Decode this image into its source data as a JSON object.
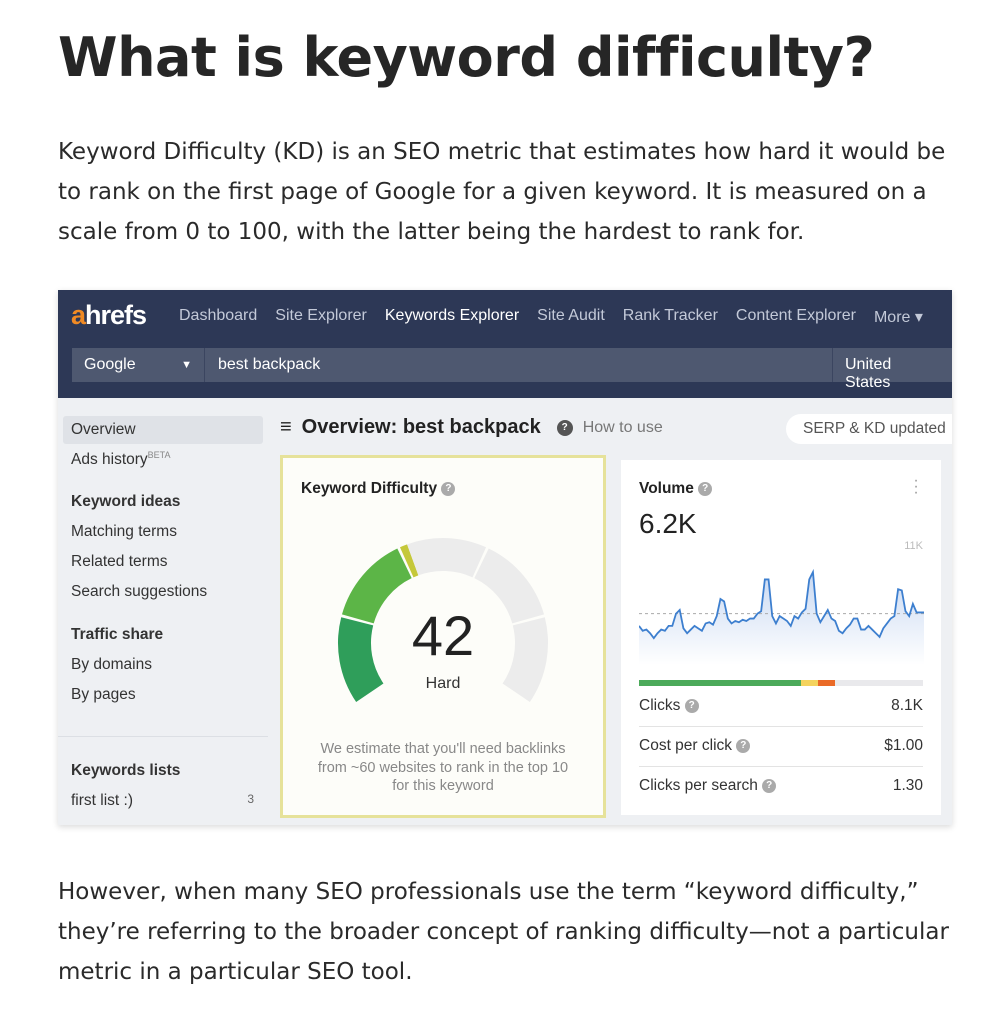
{
  "article": {
    "title": "What is keyword difficulty?",
    "intro": "Keyword Difficulty (KD) is an SEO metric that estimates how hard it would be to rank on the first page of Google for a given keyword. It is measured on a scale from 0 to 100, with the latter being the hardest to rank for.",
    "outro": "However, when many SEO professionals use the term “keyword difficulty,” they’re referring to the broader concept of ranking difficulty—not a particular metric in a particular SEO tool."
  },
  "app": {
    "logo": "ahrefs",
    "nav": [
      "Dashboard",
      "Site Explorer",
      "Keywords Explorer",
      "Site Audit",
      "Rank Tracker",
      "Content Explorer",
      "More ▾"
    ],
    "active_nav": "Keywords Explorer",
    "search": {
      "engine": "Google",
      "query": "best backpack",
      "country": "United States"
    },
    "sidebar": {
      "overview": "Overview",
      "ads_history": "Ads history",
      "beta": "BETA",
      "keyword_ideas": "Keyword ideas",
      "matching": "Matching terms",
      "related": "Related terms",
      "suggestions": "Search suggestions",
      "traffic_share": "Traffic share",
      "by_domains": "By domains",
      "by_pages": "By pages",
      "lists_title": "Keywords lists",
      "list_name": "first list :)",
      "list_count": "3"
    },
    "header": {
      "title": "Overview: best backpack",
      "how_to": "How to use",
      "updated": "SERP & KD updated"
    },
    "kd": {
      "title": "Keyword Difficulty",
      "value": 42,
      "label": "Hard",
      "note": "We estimate that you'll need backlinks from ~60 websites to rank in the top 10 for this keyword",
      "colors": [
        "#2f9e5a",
        "#5cb547",
        "#c5c83a",
        "#e9e9e9",
        "#e9e9e9"
      ]
    },
    "volume": {
      "title": "Volume",
      "value": "6.2K",
      "max_label": "11K",
      "sparkline_values": [
        5.2,
        4.8,
        4.9,
        4.6,
        4.2,
        4.6,
        4.9,
        4.8,
        5.2,
        5.2,
        6.2,
        6.5,
        5.0,
        4.6,
        4.9,
        5.2,
        5.0,
        4.8,
        5.4,
        5.5,
        5.3,
        6.0,
        7.4,
        7.2,
        5.8,
        5.4,
        5.6,
        5.5,
        5.7,
        5.6,
        5.8,
        5.8,
        6.2,
        6.4,
        9.0,
        9.0,
        6.0,
        5.4,
        6.0,
        5.8,
        5.6,
        5.2,
        6.0,
        5.8,
        6.3,
        6.6,
        9.0,
        9.6,
        6.2,
        5.5,
        6.0,
        6.5,
        5.8,
        5.6,
        4.8,
        4.6,
        5.0,
        5.3,
        5.8,
        5.8,
        4.9,
        4.9,
        5.2,
        4.9,
        4.6,
        4.3,
        5.0,
        5.4,
        5.8,
        6.0,
        8.2,
        8.1,
        6.4,
        6.0,
        7.0,
        6.3,
        6.3,
        6.3
      ],
      "average": 6.2,
      "click_split": [
        {
          "share": 57,
          "color": "#4caa5a"
        },
        {
          "share": 6,
          "color": "#f4d35e"
        },
        {
          "share": 6,
          "color": "#ea6a27"
        },
        {
          "share": 31,
          "color": "#e9e9ec"
        }
      ],
      "metrics": [
        {
          "label": "Clicks",
          "value": "8.1K"
        },
        {
          "label": "Cost per click",
          "value": "$1.00"
        },
        {
          "label": "Clicks per search",
          "value": "1.30"
        }
      ]
    }
  }
}
